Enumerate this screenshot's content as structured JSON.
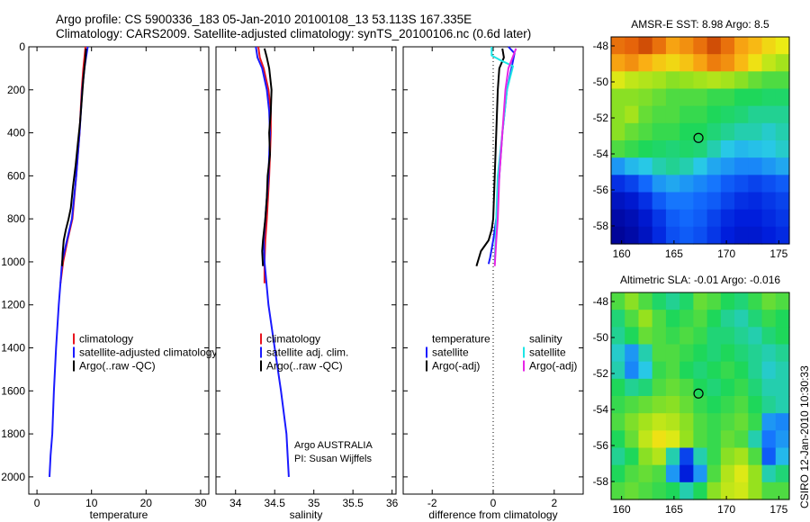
{
  "header": {
    "line1": "Argo profile: CS 5900336_183 05-Jan-2010 20100108_13 53.113S 167.335E",
    "line2": "Climatology: CARS2009. Satellite-adjusted climatology: synTS_20100106.nc (0.6d later)"
  },
  "side_caption": "CSIRO 12-Jan-2010 10:30:33",
  "colors": {
    "climatology": "#e8141e",
    "satellite": "#1a1aff",
    "argo": "#000000",
    "satellite_salinity": "#1ee6e6",
    "argo_adj_salinity": "#e626e6"
  },
  "chart_data": [
    {
      "id": "temperature",
      "type": "line",
      "xlabel": "temperature",
      "ylabel": "",
      "xlim": [
        -1.5,
        31.5
      ],
      "ylim": [
        2080,
        0
      ],
      "xticks": [
        0,
        10,
        20,
        30
      ],
      "yticks": [
        0,
        200,
        400,
        600,
        800,
        1000,
        1200,
        1400,
        1600,
        1800,
        2000
      ],
      "legend": {
        "placement": "lower-right",
        "entries": [
          "climatology",
          "satellite-adjusted climatology",
          "Argo(..raw -QC)"
        ]
      },
      "series": [
        {
          "name": "climatology",
          "color_key": "climatology",
          "x": [
            8.9,
            8.7,
            8.5,
            8.2,
            7.8,
            7.2,
            6.5,
            5.6,
            4.8,
            4.3
          ],
          "y": [
            0,
            50,
            100,
            200,
            400,
            600,
            800,
            900,
            1000,
            1100
          ]
        },
        {
          "name": "satellite-adjusted climatology",
          "color_key": "satellite",
          "x": [
            9.3,
            9.0,
            8.7,
            8.3,
            7.8,
            7.2,
            6.4,
            5.5,
            4.6,
            4.0,
            3.5,
            3.1,
            2.8,
            2.5,
            2.3
          ],
          "y": [
            0,
            50,
            100,
            200,
            400,
            600,
            800,
            900,
            1000,
            1200,
            1400,
            1600,
            1800,
            1900,
            2000
          ]
        },
        {
          "name": "Argo(..raw -QC)",
          "color_key": "argo",
          "x": [
            9.0,
            8.9,
            8.7,
            8.5,
            8.2,
            7.9,
            7.5,
            7.1,
            6.6,
            6.2,
            5.8,
            5.3,
            4.9,
            4.7,
            4.6
          ],
          "y": [
            8,
            50,
            100,
            150,
            250,
            350,
            450,
            550,
            650,
            750,
            800,
            850,
            900,
            960,
            1020
          ]
        }
      ]
    },
    {
      "id": "salinity",
      "type": "line",
      "xlabel": "salinity",
      "ylabel": "",
      "xlim": [
        33.75,
        36.05
      ],
      "ylim": [
        2080,
        0
      ],
      "xticks": [
        34,
        34.5,
        35,
        35.5,
        36
      ],
      "yticks": [
        0,
        200,
        400,
        600,
        800,
        1000,
        1200,
        1400,
        1600,
        1800,
        2000
      ],
      "legend": {
        "placement": "lower-right",
        "entries": [
          "climatology",
          "satellite adj. clim.",
          "Argo(..raw -QC)"
        ]
      },
      "annotation": [
        "Argo AUSTRALIA",
        "PI: Susan Wijffels"
      ],
      "series": [
        {
          "name": "climatology",
          "color_key": "climatology",
          "x": [
            34.29,
            34.31,
            34.36,
            34.42,
            34.45,
            34.45,
            34.43,
            34.4,
            34.38,
            34.37,
            34.37
          ],
          "y": [
            0,
            50,
            100,
            200,
            300,
            400,
            600,
            800,
            900,
            1000,
            1100
          ]
        },
        {
          "name": "satellite adj. clim.",
          "color_key": "satellite",
          "x": [
            34.26,
            34.28,
            34.34,
            34.4,
            34.43,
            34.44,
            34.42,
            34.38,
            34.36,
            34.37,
            34.42,
            34.5,
            34.58,
            34.65,
            34.68
          ],
          "y": [
            0,
            50,
            100,
            200,
            300,
            400,
            600,
            800,
            900,
            1000,
            1200,
            1400,
            1600,
            1800,
            2000
          ]
        },
        {
          "name": "Argo(..raw -QC)",
          "color_key": "argo",
          "x": [
            34.37,
            34.4,
            34.43,
            34.46,
            34.45,
            34.43,
            34.44,
            34.41,
            34.4,
            34.38,
            34.35,
            34.34,
            34.35
          ],
          "y": [
            8,
            50,
            100,
            200,
            300,
            400,
            500,
            600,
            700,
            800,
            900,
            950,
            1020
          ]
        }
      ]
    },
    {
      "id": "difference",
      "type": "line",
      "xlabel": "difference from climatology",
      "ylabel": "",
      "xlim": [
        -2.95,
        2.95
      ],
      "ylim": [
        2080,
        0
      ],
      "xticks": [
        -2,
        0,
        2
      ],
      "yticks": [
        0,
        200,
        400,
        600,
        800,
        1000,
        1200,
        1400,
        1600,
        1800,
        2000
      ],
      "zero_line": true,
      "legend": {
        "placement": "lower",
        "groups": [
          {
            "heading": "temperature",
            "entries": [
              "satellite",
              "Argo(-adj)"
            ]
          },
          {
            "heading": "salinity",
            "entries": [
              "satellite",
              "Argo(-adj)"
            ]
          }
        ]
      },
      "series": [
        {
          "name": "satellite",
          "group": "temperature",
          "color_key": "satellite",
          "x": [
            0.5,
            0.7,
            0.6,
            0.45,
            0.3,
            0.2,
            0.1,
            0.0,
            -0.1,
            -0.15
          ],
          "y": [
            0,
            30,
            100,
            200,
            400,
            600,
            800,
            900,
            980,
            1010
          ]
        },
        {
          "name": "Argo(-adj)",
          "group": "temperature",
          "color_key": "argo",
          "x": [
            0.3,
            0.35,
            0.2,
            0.15,
            0.1,
            0.05,
            0.0,
            -0.05,
            -0.15,
            -0.4,
            -0.55
          ],
          "y": [
            8,
            50,
            100,
            200,
            400,
            600,
            800,
            850,
            900,
            950,
            1020
          ]
        },
        {
          "name": "satellite",
          "group": "salinity",
          "color_key": "satellite_salinity",
          "x": [
            -0.05,
            -0.05,
            0.2,
            0.65,
            0.45,
            0.3,
            0.15,
            0.1,
            0.05
          ],
          "y": [
            0,
            40,
            60,
            90,
            200,
            400,
            600,
            800,
            1000
          ]
        },
        {
          "name": "Argo(-adj)",
          "group": "salinity",
          "color_key": "argo_adj_salinity",
          "x": [
            0.75,
            0.5,
            0.4,
            0.3,
            0.2,
            0.15,
            0.1,
            0.05
          ],
          "y": [
            8,
            100,
            200,
            400,
            600,
            800,
            900,
            1020
          ]
        }
      ]
    },
    {
      "id": "sst-map",
      "type": "heatmap",
      "title": "AMSR-E SST: 8.98 Argo: 8.5",
      "xlim": [
        159,
        176
      ],
      "ylim": [
        -59,
        -47.5
      ],
      "xticks": [
        160,
        165,
        170,
        175
      ],
      "yticks": [
        -48,
        -50,
        -52,
        -54,
        -56,
        -58
      ],
      "profile_marker": {
        "lon": 167.335,
        "lat": -53.113
      },
      "field": [
        [
          0.9,
          0.92,
          0.95,
          0.9,
          0.82,
          0.85,
          0.9,
          0.95,
          0.9,
          0.82,
          0.78,
          0.72,
          0.68
        ],
        [
          0.82,
          0.85,
          0.8,
          0.75,
          0.72,
          0.76,
          0.82,
          0.88,
          0.85,
          0.78,
          0.7,
          0.62,
          0.58
        ],
        [
          0.66,
          0.62,
          0.6,
          0.58,
          0.55,
          0.56,
          0.58,
          0.6,
          0.58,
          0.55,
          0.52,
          0.5,
          0.5
        ],
        [
          0.55,
          0.55,
          0.54,
          0.52,
          0.5,
          0.5,
          0.5,
          0.48,
          0.48,
          0.46,
          0.46,
          0.45,
          0.45
        ],
        [
          0.55,
          0.58,
          0.52,
          0.5,
          0.5,
          0.48,
          0.48,
          0.46,
          0.45,
          0.44,
          0.42,
          0.42,
          0.42
        ],
        [
          0.55,
          0.52,
          0.5,
          0.48,
          0.48,
          0.46,
          0.46,
          0.44,
          0.42,
          0.4,
          0.4,
          0.38,
          0.4
        ],
        [
          0.5,
          0.48,
          0.46,
          0.45,
          0.44,
          0.45,
          0.44,
          0.4,
          0.36,
          0.34,
          0.35,
          0.36,
          0.38
        ],
        [
          0.3,
          0.34,
          0.36,
          0.4,
          0.42,
          0.4,
          0.36,
          0.32,
          0.3,
          0.28,
          0.28,
          0.3,
          0.32
        ],
        [
          0.15,
          0.18,
          0.24,
          0.3,
          0.32,
          0.3,
          0.28,
          0.26,
          0.22,
          0.2,
          0.18,
          0.2,
          0.22
        ],
        [
          0.08,
          0.1,
          0.15,
          0.22,
          0.26,
          0.26,
          0.24,
          0.22,
          0.18,
          0.15,
          0.14,
          0.16,
          0.18
        ],
        [
          0.04,
          0.06,
          0.1,
          0.16,
          0.22,
          0.24,
          0.22,
          0.18,
          0.14,
          0.12,
          0.12,
          0.14,
          0.16
        ],
        [
          0.02,
          0.04,
          0.08,
          0.14,
          0.2,
          0.22,
          0.2,
          0.16,
          0.12,
          0.1,
          0.1,
          0.12,
          0.14
        ]
      ]
    },
    {
      "id": "sla-map",
      "type": "heatmap",
      "title": "Altimetric SLA: -0.01 Argo: -0.016",
      "xlim": [
        159,
        176
      ],
      "ylim": [
        -59,
        -47.5
      ],
      "xticks": [
        160,
        165,
        170,
        175
      ],
      "yticks": [
        -48,
        -50,
        -52,
        -54,
        -56,
        -58
      ],
      "profile_marker": {
        "lon": 167.335,
        "lat": -53.113
      },
      "field": [
        [
          0.5,
          0.55,
          0.5,
          0.45,
          0.42,
          0.45,
          0.52,
          0.5,
          0.46,
          0.44,
          0.48,
          0.52,
          0.5
        ],
        [
          0.44,
          0.5,
          0.56,
          0.5,
          0.46,
          0.48,
          0.5,
          0.46,
          0.42,
          0.4,
          0.44,
          0.48,
          0.46
        ],
        [
          0.42,
          0.46,
          0.52,
          0.5,
          0.48,
          0.5,
          0.48,
          0.44,
          0.44,
          0.42,
          0.4,
          0.44,
          0.46
        ],
        [
          0.38,
          0.3,
          0.4,
          0.5,
          0.5,
          0.48,
          0.46,
          0.44,
          0.46,
          0.44,
          0.42,
          0.4,
          0.42
        ],
        [
          0.4,
          0.28,
          0.36,
          0.48,
          0.5,
          0.46,
          0.44,
          0.46,
          0.48,
          0.46,
          0.42,
          0.38,
          0.4
        ],
        [
          0.46,
          0.42,
          0.44,
          0.5,
          0.52,
          0.5,
          0.46,
          0.44,
          0.46,
          0.48,
          0.44,
          0.4,
          0.4
        ],
        [
          0.48,
          0.5,
          0.52,
          0.54,
          0.55,
          0.52,
          0.48,
          0.46,
          0.48,
          0.5,
          0.46,
          0.42,
          0.4
        ],
        [
          0.5,
          0.54,
          0.58,
          0.62,
          0.6,
          0.55,
          0.5,
          0.48,
          0.5,
          0.52,
          0.48,
          0.3,
          0.28
        ],
        [
          0.46,
          0.52,
          0.62,
          0.7,
          0.66,
          0.56,
          0.5,
          0.48,
          0.52,
          0.5,
          0.4,
          0.26,
          0.3
        ],
        [
          0.42,
          0.46,
          0.55,
          0.6,
          0.4,
          0.18,
          0.4,
          0.48,
          0.55,
          0.58,
          0.5,
          0.22,
          0.34
        ],
        [
          0.46,
          0.5,
          0.52,
          0.5,
          0.3,
          0.12,
          0.3,
          0.5,
          0.6,
          0.66,
          0.56,
          0.4,
          0.44
        ],
        [
          0.5,
          0.52,
          0.5,
          0.48,
          0.46,
          0.4,
          0.46,
          0.55,
          0.62,
          0.64,
          0.56,
          0.5,
          0.5
        ]
      ]
    }
  ]
}
